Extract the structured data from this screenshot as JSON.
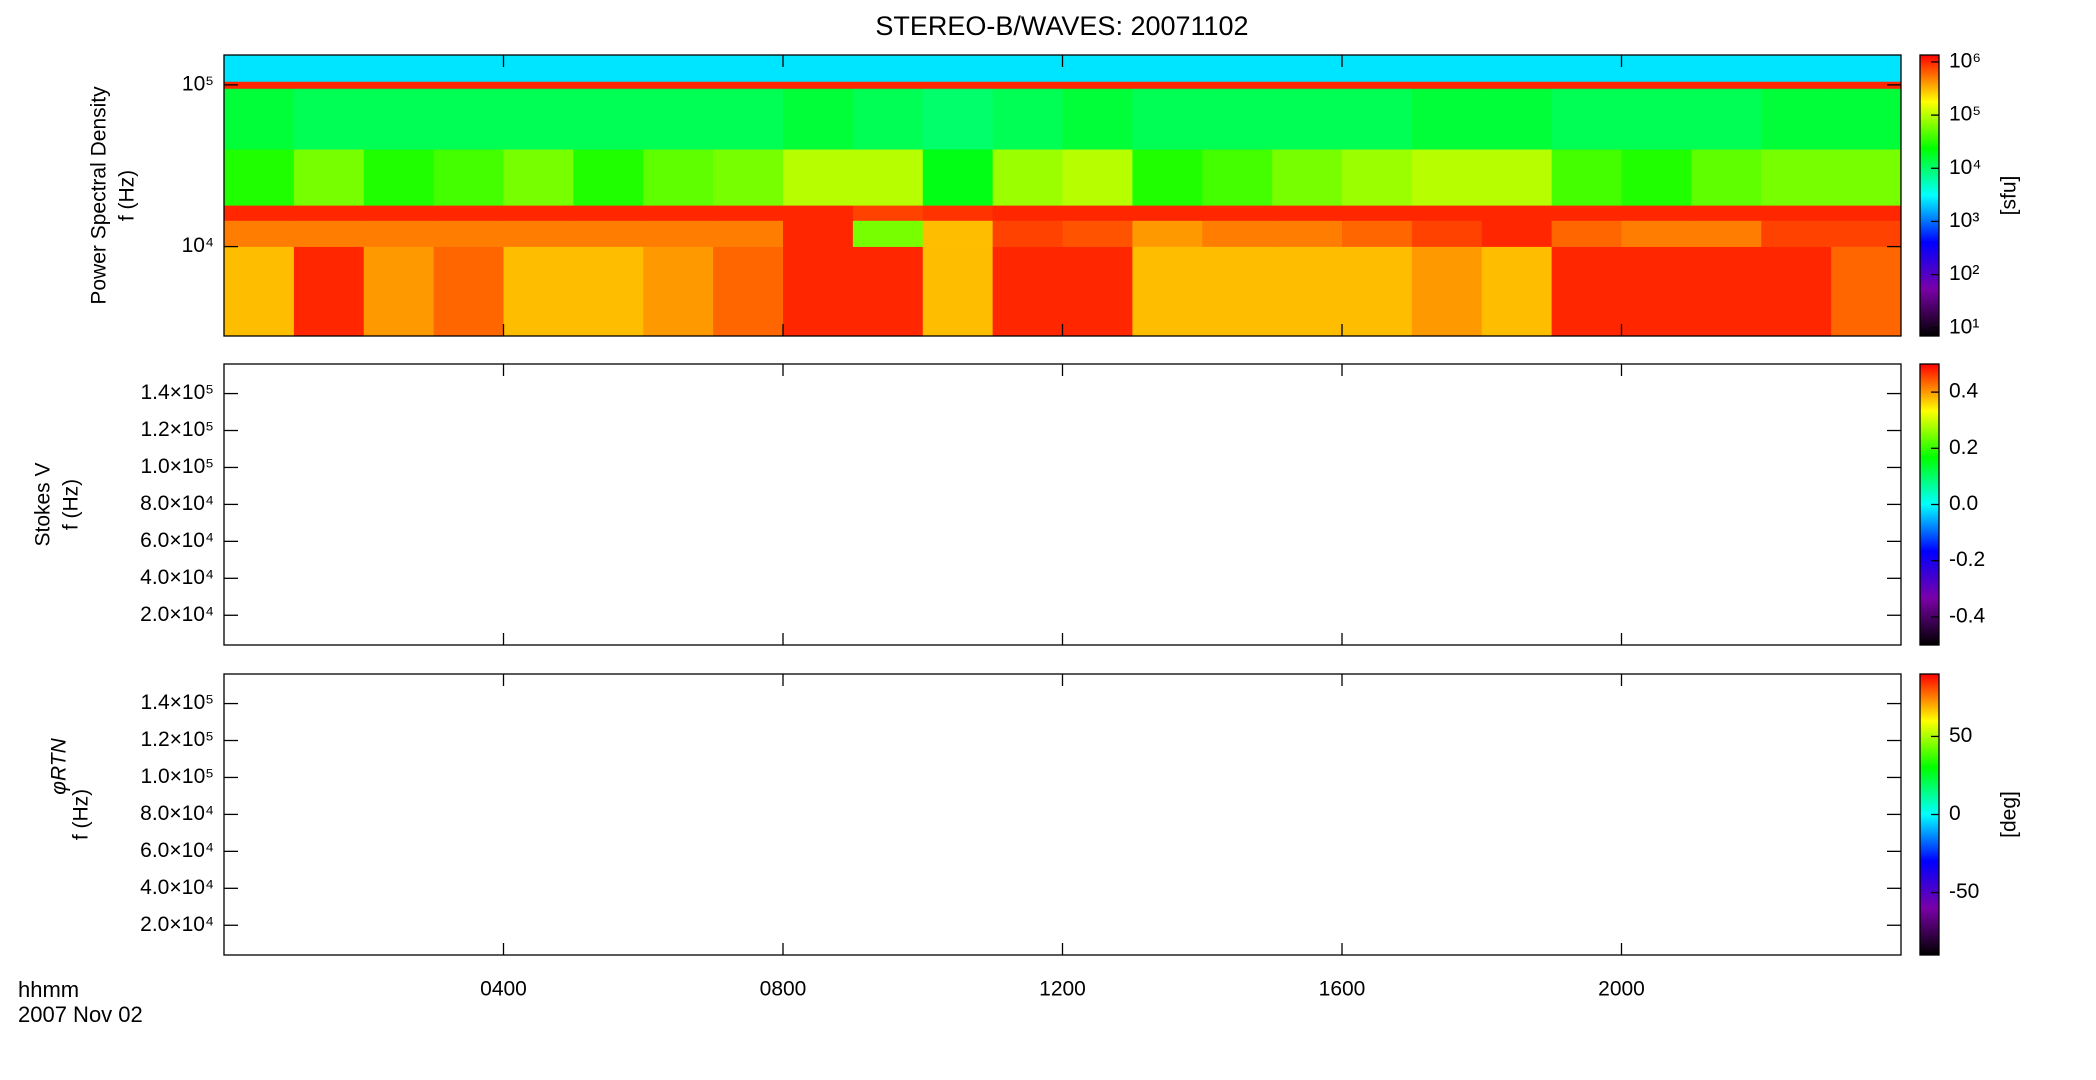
{
  "title": "STEREO-B/WAVES: 20071102",
  "x_axis": {
    "label": "hhmm",
    "date": "2007 Nov 02",
    "xlim": [
      0,
      24
    ],
    "xticks": [
      {
        "value": 4,
        "label": "0400"
      },
      {
        "value": 8,
        "label": "0800"
      },
      {
        "value": 12,
        "label": "1200"
      },
      {
        "value": 16,
        "label": "1600"
      },
      {
        "value": 20,
        "label": "2000"
      }
    ]
  },
  "colormap": [
    "#000000",
    "#7a00a8",
    "#0000ff",
    "#00ffff",
    "#00ff00",
    "#ffff00",
    "#ff0000"
  ],
  "chart_data": [
    {
      "type": "heatmap",
      "ylabel": [
        "Power Spectral Density",
        "f (Hz)"
      ],
      "yscale": "log",
      "ylim": [
        2800,
        153000
      ],
      "yticks": [
        {
          "value": 10000,
          "label": "10⁴"
        },
        {
          "value": 100000,
          "label": "10⁵"
        }
      ],
      "x_edges": [
        0,
        1,
        2,
        3,
        4,
        5,
        6,
        7,
        8,
        9,
        10,
        11,
        12,
        13,
        14,
        15,
        16,
        17,
        18,
        19,
        20,
        21,
        22,
        23,
        24
      ],
      "y_edges": [
        2800,
        10000,
        14500,
        18000,
        40000,
        95000,
        105000,
        153000
      ],
      "z": [
        [
          300000,
          1000000,
          400000,
          600000,
          300000,
          300000,
          400000,
          600000,
          1000000,
          1000000,
          300000,
          1000000,
          1000000,
          300000,
          300000,
          300000,
          300000,
          400000,
          300000,
          1000000,
          1000000,
          1000000,
          1000000,
          600000
        ],
        [
          500000,
          500000,
          500000,
          500000,
          500000,
          500000,
          500000,
          500000,
          1000000,
          60000,
          300000,
          800000,
          700000,
          400000,
          500000,
          500000,
          600000,
          800000,
          1000000,
          600000,
          500000,
          500000,
          800000,
          800000
        ],
        [
          1000000,
          1000000,
          1000000,
          1000000,
          1000000,
          1000000,
          1000000,
          1000000,
          1000000,
          800000,
          900000,
          1000000,
          1000000,
          1000000,
          1000000,
          1000000,
          1000000,
          1000000,
          1000000,
          1000000,
          1000000,
          1000000,
          1000000,
          1000000
        ],
        [
          30000,
          60000,
          30000,
          40000,
          60000,
          30000,
          50000,
          60000,
          100000,
          100000,
          20000,
          80000,
          100000,
          30000,
          40000,
          60000,
          80000,
          100000,
          100000,
          40000,
          30000,
          50000,
          60000,
          60000
        ],
        [
          15000,
          12000,
          12000,
          12000,
          12000,
          12000,
          12000,
          12000,
          15000,
          12000,
          10000,
          12000,
          15000,
          12000,
          12000,
          12000,
          12000,
          15000,
          15000,
          12000,
          12000,
          12000,
          15000,
          15000
        ],
        [
          1000000,
          1000000,
          1000000,
          1000000,
          1000000,
          1000000,
          1000000,
          1000000,
          1000000,
          1000000,
          1000000,
          1000000,
          1000000,
          1000000,
          1000000,
          1000000,
          1000000,
          1000000,
          1000000,
          1000000,
          1000000,
          1000000,
          1000000,
          1000000
        ],
        [
          2500,
          2500,
          2500,
          2500,
          2500,
          2500,
          2500,
          2500,
          2500,
          2500,
          2500,
          2500,
          2500,
          2500,
          2500,
          2500,
          2500,
          2500,
          2500,
          2500,
          2500,
          2500,
          2500,
          2500
        ]
      ],
      "colorbar": {
        "scale": "log",
        "clim": [
          7,
          1350000
        ],
        "label": "[sfu]",
        "ticks": [
          {
            "value": 10,
            "label": "10¹"
          },
          {
            "value": 100,
            "label": "10²"
          },
          {
            "value": 1000,
            "label": "10³"
          },
          {
            "value": 10000,
            "label": "10⁴"
          },
          {
            "value": 100000,
            "label": "10⁵"
          },
          {
            "value": 1000000,
            "label": "10⁶"
          }
        ]
      }
    },
    {
      "type": "heatmap",
      "ylabel": [
        "Stokes V",
        "f (Hz)"
      ],
      "yscale": "linear",
      "ylim": [
        3900,
        156000
      ],
      "yticks": [
        {
          "value": 20000,
          "label": "2.0×10⁴"
        },
        {
          "value": 40000,
          "label": "4.0×10⁴"
        },
        {
          "value": 60000,
          "label": "6.0×10⁴"
        },
        {
          "value": 80000,
          "label": "8.0×10⁴"
        },
        {
          "value": 100000,
          "label": "1.0×10⁵"
        },
        {
          "value": 120000,
          "label": "1.2×10⁵"
        },
        {
          "value": 140000,
          "label": "1.4×10⁵"
        }
      ],
      "colorbar": {
        "scale": "linear",
        "clim": [
          -0.5,
          0.5
        ],
        "ticks": [
          -0.4,
          -0.2,
          {
            "value": 0,
            "label": "0.0"
          },
          0.2,
          0.4
        ]
      }
    },
    {
      "type": "heatmap",
      "ylabel": [
        "φRTN",
        "f (Hz)"
      ],
      "yscale": "linear",
      "ylim": [
        3900,
        156000
      ],
      "yticks": [
        {
          "value": 20000,
          "label": "2.0×10⁴"
        },
        {
          "value": 40000,
          "label": "4.0×10⁴"
        },
        {
          "value": 60000,
          "label": "6.0×10⁴"
        },
        {
          "value": 80000,
          "label": "8.0×10⁴"
        },
        {
          "value": 100000,
          "label": "1.0×10⁵"
        },
        {
          "value": 120000,
          "label": "1.2×10⁵"
        },
        {
          "value": 140000,
          "label": "1.4×10⁵"
        }
      ],
      "colorbar": {
        "scale": "linear",
        "clim": [
          -90,
          90
        ],
        "label": "[deg]",
        "ticks": [
          -50,
          0,
          50
        ]
      }
    }
  ]
}
